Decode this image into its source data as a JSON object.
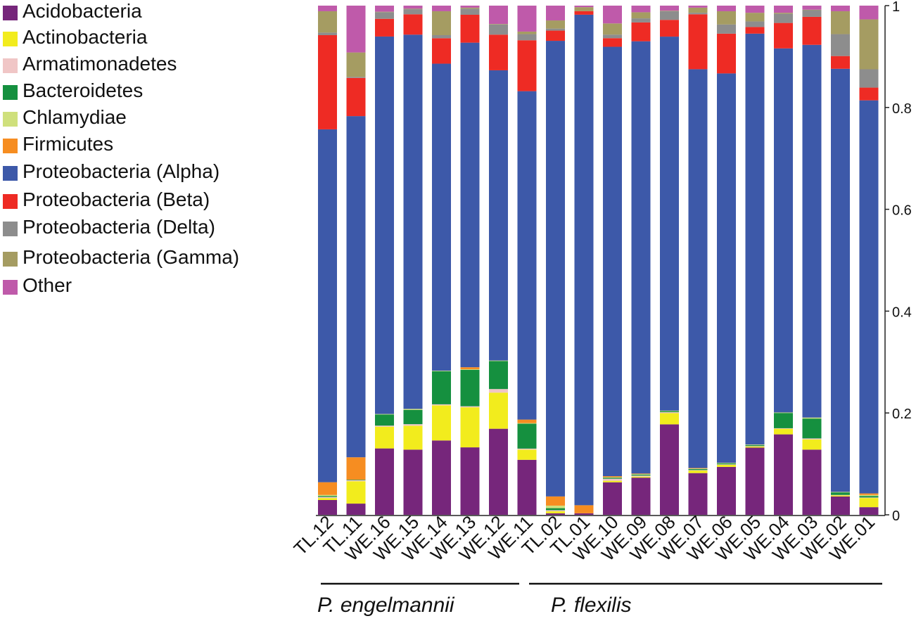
{
  "chart_data": {
    "type": "bar",
    "stacked": true,
    "categories": [
      "TL.12",
      "TL.11",
      "WE.16",
      "WE.15",
      "WE.14",
      "WE.13",
      "WE.12",
      "WE.11",
      "TL.02",
      "TL.01",
      "WE.10",
      "WE.09",
      "WE.08",
      "WE.07",
      "WE.06",
      "WE.05",
      "WE.04",
      "WE.03",
      "WE.02",
      "WE.01"
    ],
    "series": [
      {
        "name": "Acidobacteria",
        "color": "#76267b",
        "values": [
          0.029,
          0.022,
          0.131,
          0.128,
          0.146,
          0.133,
          0.169,
          0.108,
          0.003,
          0.003,
          0.064,
          0.073,
          0.178,
          0.082,
          0.094,
          0.132,
          0.158,
          0.128,
          0.036,
          0.015
        ]
      },
      {
        "name": "Actinobacteria",
        "color": "#f2ec1d",
        "values": [
          0.004,
          0.044,
          0.043,
          0.047,
          0.069,
          0.079,
          0.071,
          0.02,
          0.004,
          0.0,
          0.003,
          0.002,
          0.022,
          0.005,
          0.004,
          0.002,
          0.011,
          0.02,
          0.002,
          0.018
        ]
      },
      {
        "name": "Armatimonadetes",
        "color": "#f0c6c6",
        "values": [
          0.002,
          0.002,
          0.002,
          0.003,
          0.002,
          0.002,
          0.007,
          0.002,
          0.002,
          0.0,
          0.004,
          0.002,
          0.002,
          0.001,
          0.001,
          0.001,
          0.001,
          0.002,
          0.001,
          0.001
        ]
      },
      {
        "name": "Bacteroidetes",
        "color": "#15903f",
        "values": [
          0.002,
          0.001,
          0.022,
          0.028,
          0.065,
          0.072,
          0.055,
          0.049,
          0.004,
          0.0,
          0.002,
          0.002,
          0.002,
          0.002,
          0.002,
          0.002,
          0.03,
          0.039,
          0.005,
          0.003
        ]
      },
      {
        "name": "Chlamydiae",
        "color": "#cfe07c",
        "values": [
          0.002,
          0.0,
          0.001,
          0.002,
          0.001,
          0.001,
          0.001,
          0.001,
          0.005,
          0.0,
          0.001,
          0.001,
          0.001,
          0.001,
          0.001,
          0.001,
          0.001,
          0.002,
          0.001,
          0.002
        ]
      },
      {
        "name": "Firmicutes",
        "color": "#f68d21",
        "values": [
          0.025,
          0.044,
          0.0,
          0.0,
          0.0,
          0.004,
          0.0,
          0.007,
          0.018,
          0.016,
          0.002,
          0.001,
          0.0,
          0.001,
          0.0,
          0.0,
          0.0,
          0.0,
          0.0,
          0.003
        ]
      },
      {
        "name": "Proteobacteria (Alpha)",
        "color": "#3d59a9",
        "values": [
          0.693,
          0.67,
          0.745,
          0.735,
          0.603,
          0.64,
          0.57,
          0.645,
          0.893,
          0.973,
          0.845,
          0.849,
          0.736,
          0.784,
          0.764,
          0.807,
          0.715,
          0.732,
          0.831,
          0.772
        ]
      },
      {
        "name": "Proteobacteria (Beta)",
        "color": "#ee2b24",
        "values": [
          0.185,
          0.075,
          0.035,
          0.04,
          0.05,
          0.055,
          0.07,
          0.1,
          0.02,
          0.007,
          0.017,
          0.037,
          0.033,
          0.108,
          0.078,
          0.013,
          0.05,
          0.055,
          0.025,
          0.025
        ]
      },
      {
        "name": "Proteobacteria (Delta)",
        "color": "#8d8d8d",
        "values": [
          0.005,
          0.002,
          0.013,
          0.01,
          0.006,
          0.012,
          0.02,
          0.012,
          0.004,
          0.0,
          0.007,
          0.008,
          0.017,
          0.003,
          0.018,
          0.011,
          0.018,
          0.013,
          0.043,
          0.036
        ]
      },
      {
        "name": "Proteobacteria (Gamma)",
        "color": "#a59c62",
        "values": [
          0.042,
          0.048,
          0.001,
          0.001,
          0.047,
          0.002,
          0.001,
          0.005,
          0.016,
          0.008,
          0.022,
          0.012,
          0.001,
          0.01,
          0.026,
          0.017,
          0.002,
          0.001,
          0.045,
          0.098
        ]
      },
      {
        "name": "Other",
        "color": "#bf5aaa",
        "values": [
          0.011,
          0.092,
          0.012,
          0.006,
          0.011,
          0.004,
          0.036,
          0.051,
          0.029,
          0.003,
          0.035,
          0.013,
          0.01,
          0.004,
          0.011,
          0.014,
          0.014,
          0.008,
          0.011,
          0.027
        ]
      }
    ],
    "yaxis": {
      "ticks": [
        0,
        0.2,
        0.4,
        0.6,
        0.8,
        1
      ],
      "tick_labels": [
        "0",
        "0.2",
        "0.4",
        "0.6",
        "0.8",
        "1"
      ],
      "ylim": [
        0,
        1
      ],
      "position": "right"
    },
    "groups": [
      {
        "label": "P. engelmannii",
        "categories": [
          "TL.12",
          "TL.11",
          "WE.16",
          "WE.15",
          "WE.14",
          "WE.13",
          "WE.12",
          "WE.11"
        ]
      },
      {
        "label": "P. flexilis",
        "categories": [
          "TL.02",
          "TL.01",
          "WE.10",
          "WE.09",
          "WE.08",
          "WE.07",
          "WE.06",
          "WE.05",
          "WE.04",
          "WE.03",
          "WE.02",
          "WE.01"
        ]
      }
    ],
    "legend": {
      "placement": "top-left"
    },
    "title": "",
    "xlabel": "",
    "ylabel": ""
  }
}
